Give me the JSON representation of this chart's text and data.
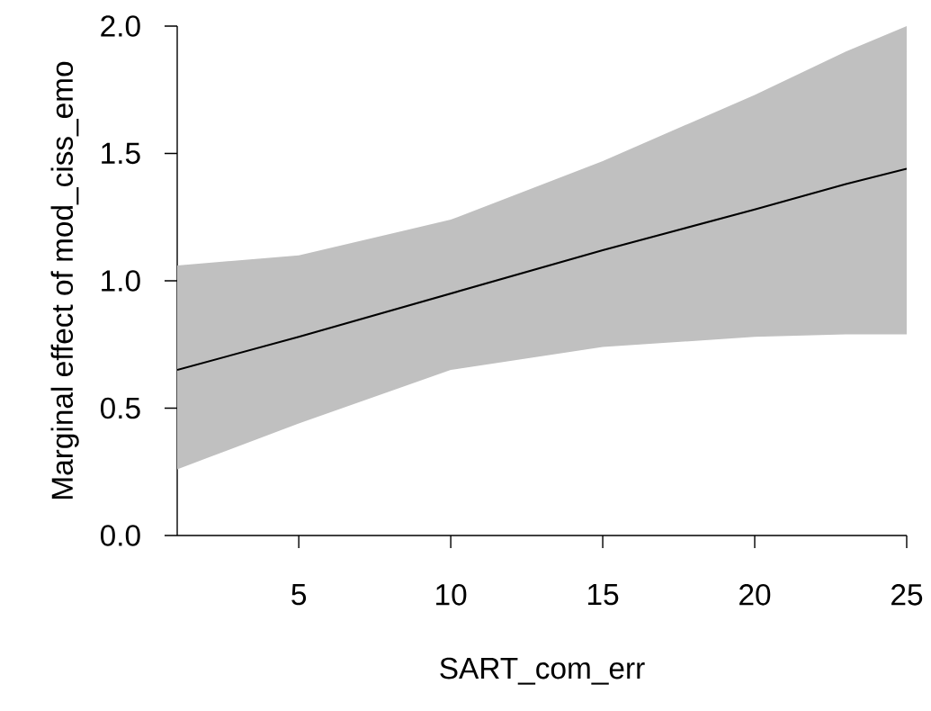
{
  "chart_data": {
    "type": "line",
    "xlabel": "SART_com_err",
    "ylabel": "Marginal effect of mod_ciss_emo",
    "x": [
      1,
      5,
      10,
      15,
      20,
      23,
      25
    ],
    "series": [
      {
        "color": "#000000",
        "values": [
          0.65,
          0.78,
          0.95,
          1.12,
          1.28,
          1.38,
          1.44
        ],
        "lower": [
          0.26,
          0.44,
          0.65,
          0.74,
          0.78,
          0.79,
          0.79
        ],
        "upper": [
          1.06,
          1.1,
          1.24,
          1.47,
          1.73,
          1.9,
          2.0
        ]
      }
    ],
    "xlim": [
      1,
      25
    ],
    "ylim": [
      0,
      2
    ],
    "xticks": [
      5,
      10,
      15,
      20,
      25
    ],
    "yticks": [
      {
        "value": 0,
        "label": "0.0"
      },
      {
        "value": 0.5,
        "label": "0.5"
      },
      {
        "value": 1,
        "label": "1.0"
      },
      {
        "value": 1.5,
        "label": "1.5"
      },
      {
        "value": 2,
        "label": "2.0"
      }
    ],
    "marker": "none",
    "line_style": "solid"
  }
}
